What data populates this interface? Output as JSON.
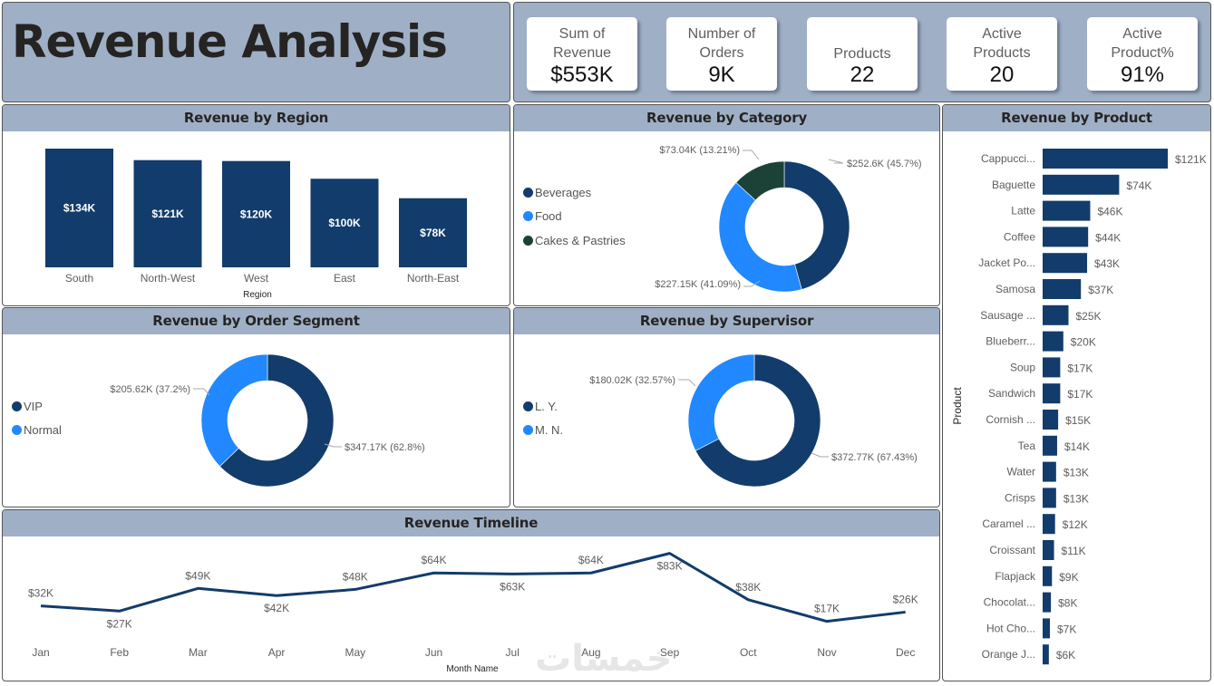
{
  "header": {
    "title": "Revenue Analysis"
  },
  "kpis": [
    {
      "label": "Sum of Revenue",
      "lines": [
        "Sum of",
        "Revenue"
      ],
      "value": "$553K"
    },
    {
      "label": "Number of Orders",
      "lines": [
        "Number of",
        "Orders"
      ],
      "value": "9K"
    },
    {
      "label": "Products",
      "lines": [
        "Products"
      ],
      "value": "22"
    },
    {
      "label": "Active Products",
      "lines": [
        "Active",
        "Products"
      ],
      "value": "20"
    },
    {
      "label": "Active Product%",
      "lines": [
        "Active",
        "Product%"
      ],
      "value": "91%"
    }
  ],
  "colors": {
    "dark_blue": "#123c6b",
    "light_blue": "#2188ff",
    "dark_green": "#1c4238",
    "header_bg": "#9fb0c6"
  },
  "chart_data": [
    {
      "id": "region",
      "type": "bar",
      "title": "Revenue by Region",
      "xlabel": "Region",
      "ylabel": "",
      "categories": [
        "South",
        "North-West",
        "West",
        "East",
        "North-East"
      ],
      "values": [
        134,
        121,
        120,
        100,
        78
      ],
      "labels": [
        "$134K",
        "$121K",
        "$120K",
        "$100K",
        "$78K"
      ],
      "units": "K$",
      "ylim": [
        0,
        145
      ],
      "grid": false
    },
    {
      "id": "category",
      "type": "pie",
      "title": "Revenue by Category",
      "donut": true,
      "legend": "left",
      "slices": [
        {
          "name": "Beverages",
          "value": 252.6,
          "label": "$252.6K (45.7%)",
          "color": "#123c6b"
        },
        {
          "name": "Food",
          "value": 227.15,
          "label": "$227.15K (41.09%)",
          "color": "#2188ff"
        },
        {
          "name": "Cakes & Pastries",
          "value": 73.04,
          "label": "$73.04K (13.21%)",
          "color": "#1c4238"
        }
      ]
    },
    {
      "id": "segment",
      "type": "pie",
      "title": "Revenue by Order Segment",
      "donut": true,
      "legend": "left",
      "slices": [
        {
          "name": "VIP",
          "value": 347.17,
          "label": "$347.17K (62.8%)",
          "color": "#123c6b"
        },
        {
          "name": "Normal",
          "value": 205.62,
          "label": "$205.62K (37.2%)",
          "color": "#2188ff"
        }
      ]
    },
    {
      "id": "supervisor",
      "type": "pie",
      "title": "Revenue by Supervisor",
      "donut": true,
      "legend": "left",
      "slices": [
        {
          "name": "L. Y.",
          "value": 372.77,
          "label": "$372.77K (67.43%)",
          "color": "#123c6b"
        },
        {
          "name": "M. N.",
          "value": 180.02,
          "label": "$180.02K (32.57%)",
          "color": "#2188ff"
        }
      ]
    },
    {
      "id": "product",
      "type": "bar",
      "orientation": "horizontal",
      "title": "Revenue by Product",
      "ylabel": "Product",
      "xlabel": "",
      "categories": [
        "Cappucci...",
        "Baguette",
        "Latte",
        "Coffee",
        "Jacket Po...",
        "Samosa",
        "Sausage ...",
        "Blueberr...",
        "Soup",
        "Sandwich",
        "Cornish ...",
        "Tea",
        "Water",
        "Crisps",
        "Caramel ...",
        "Croissant",
        "Flapjack",
        "Chocolat...",
        "Hot Cho...",
        "Orange J..."
      ],
      "values": [
        121,
        74,
        46,
        44,
        43,
        37,
        25,
        20,
        17,
        17,
        15,
        14,
        13,
        13,
        12,
        11,
        9,
        8,
        7,
        6
      ],
      "labels": [
        "$121K",
        "$74K",
        "$46K",
        "$44K",
        "$43K",
        "$37K",
        "$25K",
        "$20K",
        "$17K",
        "$17K",
        "$15K",
        "$14K",
        "$13K",
        "$13K",
        "$12K",
        "$11K",
        "$9K",
        "$8K",
        "$7K",
        "$6K"
      ],
      "xlim": [
        0,
        121
      ],
      "grid": false
    },
    {
      "id": "timeline",
      "type": "line",
      "title": "Revenue Timeline",
      "xlabel": "Month Name",
      "ylabel": "",
      "categories": [
        "Jan",
        "Feb",
        "Mar",
        "Apr",
        "May",
        "Jun",
        "Jul",
        "Aug",
        "Sep",
        "Oct",
        "Nov",
        "Dec"
      ],
      "values": [
        32,
        27,
        49,
        42,
        48,
        64,
        63,
        64,
        83,
        38,
        17,
        26
      ],
      "labels": [
        "$32K",
        "$27K",
        "$49K",
        "$42K",
        "$48K",
        "$64K",
        "$63K",
        "$64K",
        "$83K",
        "$38K",
        "$17K",
        "$26K"
      ],
      "label_positions": [
        "above",
        "below",
        "above",
        "below",
        "above",
        "above",
        "below",
        "above",
        "below",
        "above",
        "above",
        "above"
      ],
      "ylim": [
        0,
        90
      ],
      "grid": false
    }
  ]
}
